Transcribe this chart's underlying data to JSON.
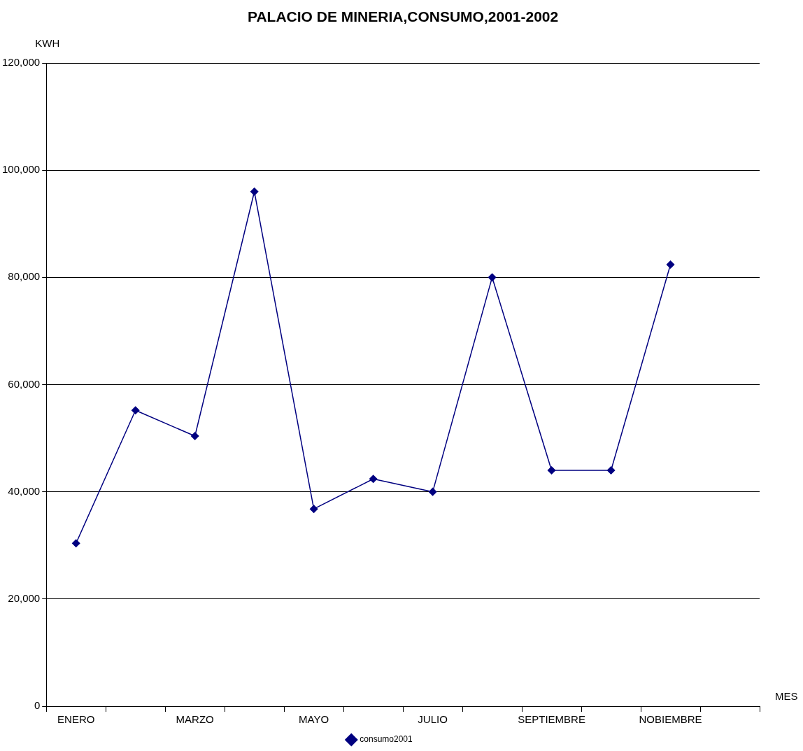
{
  "chart_data": {
    "type": "line",
    "title": "PALACIO DE MINERIA,CONSUMO,2001-2002",
    "xlabel": "MES",
    "ylabel": "KWH",
    "categories": [
      "ENERO",
      null,
      "MARZO",
      null,
      "MAYO",
      null,
      "JULIO",
      null,
      "SEPTIEMBRE",
      null,
      "NOBIEMBRE",
      null
    ],
    "series": [
      {
        "name": "consumo2001",
        "color": "#000080",
        "values": [
          30400,
          55200,
          50400,
          96000,
          36800,
          42400,
          40000,
          80000,
          44000,
          44000,
          82400,
          null
        ]
      }
    ],
    "ylim": [
      0,
      120000
    ],
    "yticks": [
      {
        "value": 0,
        "label": "0"
      },
      {
        "value": 20000,
        "label": "20,000"
      },
      {
        "value": 40000,
        "label": "40,000"
      },
      {
        "value": 60000,
        "label": "60,000"
      },
      {
        "value": 80000,
        "label": "80,000"
      },
      {
        "value": 100000,
        "label": "100,000"
      },
      {
        "value": 120000,
        "label": "120,000"
      }
    ],
    "grid": "y",
    "legend": "bottom",
    "marker": "diamond",
    "line_style": "solid"
  }
}
